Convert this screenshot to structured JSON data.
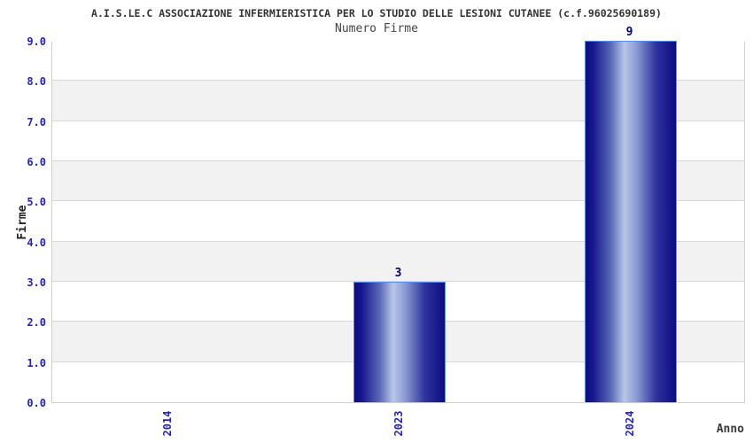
{
  "chart_data": {
    "type": "bar",
    "title": "A.I.S.LE.C ASSOCIAZIONE INFERMIERISTICA PER LO STUDIO DELLE LESIONI CUTANEE (c.f.96025690189)",
    "subtitle": "Numero Firme",
    "xlabel": "Anno",
    "ylabel": "Firme",
    "categories": [
      "2014",
      "2023",
      "2024"
    ],
    "values": [
      0,
      3,
      9
    ],
    "bar_value_labels": [
      "",
      "3",
      "9"
    ],
    "ylim": [
      0,
      9
    ],
    "ytick_interval": 1.0,
    "ytick_labels": [
      "0.0",
      "1.0",
      "2.0",
      "3.0",
      "4.0",
      "5.0",
      "6.0",
      "7.0",
      "8.0",
      "9.0"
    ],
    "grid": "horizontal-bands",
    "legend": "none",
    "colors": {
      "bar_dark": "#0c0c80",
      "bar_mid": "#5a68b6",
      "bar_light": "#b8c6e8",
      "bar_border": "#5b8dee",
      "tick_label": "#2222cc",
      "value_label": "#00007d",
      "band_gray": "#f2f2f2",
      "band_white": "#ffffff",
      "gridline": "#d9d9d9",
      "plot_border": "#d0d0d0",
      "title_color": "#333333",
      "background": "#ffffff"
    }
  }
}
